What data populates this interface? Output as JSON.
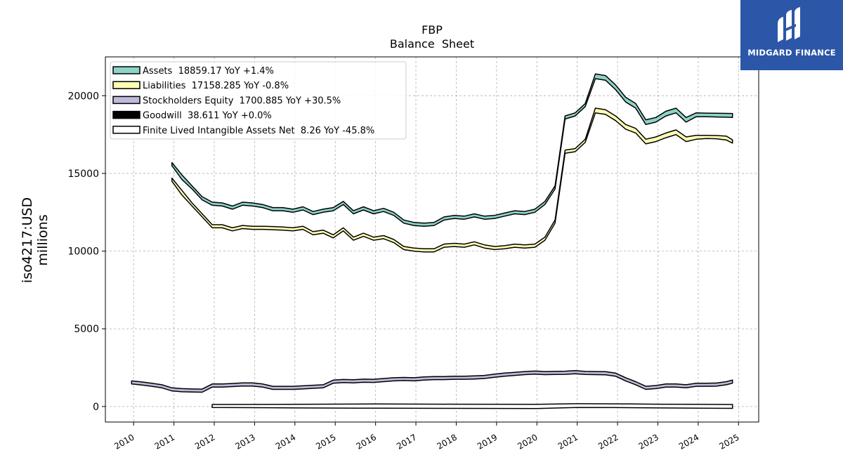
{
  "logo": {
    "text": "MIDGARD FINANCE"
  },
  "colors": {
    "assets": "#8dd3c7",
    "liabilities": "#ffffb3",
    "equity": "#bebada",
    "goodwill": "#000000",
    "intangibles": "#ffffff",
    "outline": "#000000",
    "grid": "#b0b0b0"
  },
  "chart_data": {
    "type": "line",
    "title": "FBP",
    "subtitle": "Balance  Sheet",
    "ylabel": "iso4217:USD",
    "ylabel2": "millions",
    "xlabel": "",
    "ylim": [
      -1000,
      22500
    ],
    "xlim": [
      2009.3,
      2025.5
    ],
    "yticks": [
      0,
      5000,
      10000,
      15000,
      20000
    ],
    "xticks": [
      "2010",
      "2011",
      "2012",
      "2013",
      "2014",
      "2015",
      "2016",
      "2017",
      "2018",
      "2019",
      "2020",
      "2021",
      "2022",
      "2023",
      "2024",
      "2025"
    ],
    "grid": true,
    "legend_position": "top-left",
    "series": [
      {
        "name": "Assets  18859.17 YoY +1.4%",
        "color": "#8dd3c7",
        "x": [
          2010.95,
          2011.2,
          2011.45,
          2011.7,
          2011.95,
          2012.2,
          2012.45,
          2012.7,
          2012.95,
          2013.2,
          2013.45,
          2013.7,
          2013.95,
          2014.2,
          2014.45,
          2014.7,
          2014.95,
          2015.2,
          2015.45,
          2015.7,
          2015.95,
          2016.2,
          2016.45,
          2016.7,
          2016.95,
          2017.2,
          2017.45,
          2017.7,
          2017.95,
          2018.2,
          2018.45,
          2018.7,
          2018.95,
          2019.2,
          2019.45,
          2019.7,
          2019.95,
          2020.2,
          2020.45,
          2020.7,
          2020.95,
          2021.2,
          2021.45,
          2021.7,
          2021.95,
          2022.2,
          2022.45,
          2022.7,
          2022.95,
          2023.2,
          2023.45,
          2023.7,
          2023.95,
          2024.2,
          2024.45,
          2024.7,
          2024.85
        ],
        "y": [
          15700,
          14900,
          14200,
          13500,
          13150,
          13100,
          12900,
          13150,
          13100,
          13000,
          12800,
          12800,
          12700,
          12850,
          12550,
          12700,
          12800,
          13200,
          12600,
          12850,
          12600,
          12750,
          12500,
          12000,
          11850,
          11800,
          11850,
          12200,
          12300,
          12250,
          12400,
          12250,
          12300,
          12450,
          12600,
          12550,
          12700,
          13200,
          14200,
          18700,
          18900,
          19500,
          21400,
          21300,
          20700,
          19900,
          19500,
          18450,
          18600,
          19000,
          19200,
          18600,
          18900,
          18880,
          18870,
          18860,
          18859
        ],
        "lo": [
          15500,
          14600,
          14000,
          13300,
          12950,
          12900,
          12700,
          12950,
          12900,
          12800,
          12600,
          12600,
          12500,
          12650,
          12350,
          12500,
          12600,
          13000,
          12400,
          12650,
          12400,
          12550,
          12300,
          11800,
          11650,
          11600,
          11650,
          12000,
          12100,
          12050,
          12200,
          12050,
          12100,
          12250,
          12400,
          12350,
          12500,
          13000,
          14000,
          18500,
          18700,
          19300,
          21100,
          21000,
          20400,
          19600,
          19200,
          18150,
          18300,
          18700,
          18900,
          18300,
          18650,
          18650,
          18630,
          18620,
          18600
        ]
      },
      {
        "name": "Liabilities  17158.285 YoY -0.8%",
        "color": "#ffffb3",
        "x": [
          2010.95,
          2011.2,
          2011.45,
          2011.7,
          2011.95,
          2012.2,
          2012.45,
          2012.7,
          2012.95,
          2013.2,
          2013.45,
          2013.7,
          2013.95,
          2014.2,
          2014.45,
          2014.7,
          2014.95,
          2015.2,
          2015.45,
          2015.7,
          2015.95,
          2016.2,
          2016.45,
          2016.7,
          2016.95,
          2017.2,
          2017.45,
          2017.7,
          2017.95,
          2018.2,
          2018.45,
          2018.7,
          2018.95,
          2019.2,
          2019.45,
          2019.7,
          2019.95,
          2020.2,
          2020.45,
          2020.7,
          2020.95,
          2021.2,
          2021.45,
          2021.7,
          2021.95,
          2022.2,
          2022.45,
          2022.7,
          2022.95,
          2023.2,
          2023.45,
          2023.7,
          2023.95,
          2024.2,
          2024.45,
          2024.7,
          2024.85
        ],
        "y": [
          14700,
          13900,
          13100,
          12400,
          11700,
          11700,
          11500,
          11650,
          11600,
          11600,
          11580,
          11550,
          11500,
          11600,
          11250,
          11350,
          11050,
          11500,
          10900,
          11150,
          10900,
          11000,
          10750,
          10300,
          10200,
          10150,
          10150,
          10450,
          10500,
          10450,
          10600,
          10400,
          10300,
          10350,
          10450,
          10400,
          10450,
          10900,
          12000,
          16500,
          16600,
          17200,
          19200,
          19100,
          18700,
          18150,
          17900,
          17200,
          17350,
          17600,
          17800,
          17350,
          17450,
          17450,
          17440,
          17400,
          17158
        ],
        "lo": [
          14500,
          13600,
          12900,
          12200,
          11500,
          11500,
          11300,
          11450,
          11400,
          11400,
          11380,
          11350,
          11300,
          11400,
          11050,
          11150,
          10850,
          11300,
          10700,
          10950,
          10700,
          10800,
          10550,
          10100,
          10000,
          9950,
          9950,
          10250,
          10300,
          10250,
          10400,
          10200,
          10100,
          10150,
          10250,
          10200,
          10250,
          10700,
          11800,
          16300,
          16400,
          17000,
          18900,
          18800,
          18400,
          17850,
          17600,
          16900,
          17050,
          17300,
          17500,
          17050,
          17200,
          17250,
          17230,
          17150,
          16950
        ]
      },
      {
        "name": "Stockholders Equity  1700.885 YoY +30.5%",
        "color": "#bebada",
        "x": [
          2009.95,
          2010.2,
          2010.45,
          2010.7,
          2010.95,
          2011.2,
          2011.45,
          2011.7,
          2011.95,
          2012.2,
          2012.45,
          2012.7,
          2012.95,
          2013.2,
          2013.45,
          2013.7,
          2013.95,
          2014.2,
          2014.45,
          2014.7,
          2014.95,
          2015.2,
          2015.45,
          2015.7,
          2015.95,
          2016.2,
          2016.45,
          2016.7,
          2016.95,
          2017.2,
          2017.45,
          2017.7,
          2017.95,
          2018.2,
          2018.45,
          2018.7,
          2018.95,
          2019.2,
          2019.45,
          2019.7,
          2019.95,
          2020.2,
          2020.45,
          2020.7,
          2020.95,
          2021.2,
          2021.45,
          2021.7,
          2021.95,
          2022.2,
          2022.45,
          2022.7,
          2022.95,
          2023.2,
          2023.45,
          2023.7,
          2023.95,
          2024.2,
          2024.45,
          2024.7,
          2024.85
        ],
        "y": [
          1650,
          1580,
          1500,
          1400,
          1200,
          1150,
          1130,
          1120,
          1450,
          1450,
          1480,
          1520,
          1520,
          1450,
          1300,
          1300,
          1300,
          1330,
          1370,
          1400,
          1700,
          1740,
          1720,
          1760,
          1750,
          1800,
          1850,
          1870,
          1850,
          1900,
          1930,
          1930,
          1950,
          1950,
          1970,
          2000,
          2080,
          2150,
          2200,
          2250,
          2280,
          2250,
          2260,
          2270,
          2310,
          2260,
          2250,
          2240,
          2150,
          1850,
          1600,
          1300,
          1350,
          1450,
          1450,
          1400,
          1500,
          1500,
          1510,
          1600,
          1701
        ],
        "lo": [
          1450,
          1380,
          1300,
          1200,
          1000,
          950,
          930,
          920,
          1250,
          1250,
          1280,
          1320,
          1320,
          1250,
          1100,
          1100,
          1100,
          1130,
          1170,
          1200,
          1500,
          1540,
          1520,
          1560,
          1550,
          1600,
          1650,
          1670,
          1650,
          1700,
          1730,
          1730,
          1750,
          1750,
          1770,
          1800,
          1880,
          1950,
          2000,
          2050,
          2080,
          2050,
          2060,
          2070,
          2110,
          2060,
          2050,
          2040,
          1950,
          1650,
          1400,
          1100,
          1150,
          1250,
          1250,
          1200,
          1300,
          1300,
          1310,
          1400,
          1500
        ]
      },
      {
        "name": "Goodwill  38.611 YoY +0.0%",
        "color": "#000000",
        "x": [
          2011.95,
          2024.85
        ],
        "y": [
          38.611,
          38.611
        ]
      },
      {
        "name": "Finite Lived Intangible Assets Net  8.26 YoY -45.8%",
        "color": "#ffffff",
        "x": [
          2011.95,
          2014.0,
          2016.0,
          2018.0,
          2020.0,
          2021.0,
          2022.0,
          2023.0,
          2024.0,
          2024.85
        ],
        "y": [
          110,
          80,
          60,
          40,
          30,
          120,
          100,
          50,
          25,
          8.26
        ],
        "hi": [
          130,
          140,
          160,
          150,
          140,
          180,
          170,
          150,
          140,
          130
        ],
        "lo2": [
          -60,
          -90,
          -110,
          -120,
          -130,
          -60,
          -70,
          -90,
          -110,
          -120
        ]
      }
    ]
  }
}
